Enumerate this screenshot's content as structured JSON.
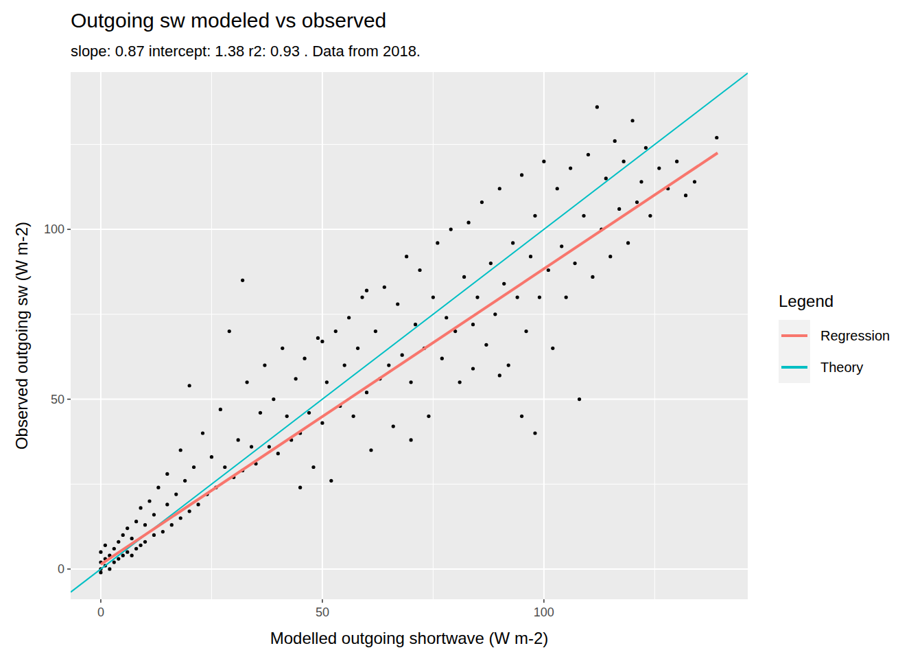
{
  "chart_data": {
    "type": "scatter",
    "title": "Outgoing sw modeled vs observed",
    "subtitle": "slope: 0.87 intercept: 1.38 r2: 0.93 . Data from 2018.",
    "x_label": "Modelled outgoing shortwave (W m-2)",
    "y_label": "Observed outgoing sw (W m-2)",
    "legend_title": "Legend",
    "legend": "right",
    "grid": true,
    "color": "#000000",
    "marker": "circle",
    "xlim": [
      -6.8,
      146
    ],
    "ylim": [
      -8.9,
      146.3
    ],
    "xticks": [
      0,
      50,
      100
    ],
    "yticks": [
      0,
      50,
      100
    ],
    "x": [
      0,
      0,
      0,
      0,
      1,
      1,
      1,
      2,
      2,
      3,
      3,
      4,
      4,
      5,
      5,
      6,
      6,
      7,
      7,
      8,
      8,
      9,
      9,
      10,
      10,
      11,
      12,
      12,
      13,
      14,
      15,
      15,
      16,
      17,
      18,
      18,
      19,
      20,
      20,
      21,
      22,
      23,
      24,
      25,
      26,
      27,
      28,
      29,
      30,
      31,
      32,
      32,
      33,
      34,
      35,
      36,
      37,
      38,
      39,
      40,
      41,
      42,
      43,
      44,
      45,
      46,
      47,
      48,
      49,
      50,
      51,
      52,
      53,
      54,
      55,
      56,
      57,
      58,
      59,
      60,
      61,
      62,
      63,
      64,
      65,
      66,
      67,
      68,
      69,
      70,
      71,
      72,
      73,
      74,
      75,
      76,
      77,
      78,
      79,
      80,
      81,
      82,
      83,
      84,
      85,
      86,
      87,
      88,
      89,
      90,
      91,
      92,
      93,
      94,
      95,
      96,
      97,
      98,
      99,
      100,
      101,
      102,
      103,
      104,
      105,
      106,
      107,
      108,
      109,
      110,
      111,
      112,
      113,
      114,
      115,
      116,
      117,
      118,
      119,
      120,
      121,
      122,
      123,
      124,
      126,
      128,
      130,
      132,
      134,
      139,
      98,
      95,
      90,
      84,
      70,
      45,
      60,
      50
    ],
    "values": [
      0,
      2,
      5,
      -1,
      3,
      7,
      1,
      4,
      0,
      6,
      2,
      8,
      3,
      10,
      4,
      12,
      5,
      9,
      4,
      14,
      6,
      18,
      7,
      13,
      8,
      20,
      10,
      16,
      24,
      11,
      19,
      28,
      13,
      22,
      15,
      35,
      26,
      17,
      54,
      30,
      19,
      40,
      22,
      33,
      24,
      47,
      30,
      70,
      27,
      38,
      85,
      29,
      55,
      36,
      31,
      46,
      60,
      36,
      50,
      34,
      65,
      45,
      38,
      56,
      40,
      62,
      46,
      30,
      68,
      43,
      55,
      26,
      70,
      48,
      60,
      74,
      45,
      65,
      80,
      52,
      35,
      70,
      56,
      83,
      60,
      42,
      78,
      63,
      92,
      55,
      72,
      88,
      65,
      45,
      80,
      96,
      62,
      74,
      100,
      70,
      55,
      86,
      102,
      72,
      80,
      108,
      66,
      90,
      75,
      112,
      84,
      60,
      96,
      80,
      116,
      70,
      92,
      104,
      80,
      120,
      88,
      65,
      112,
      95,
      80,
      118,
      90,
      50,
      104,
      122,
      86,
      136,
      100,
      115,
      92,
      126,
      106,
      120,
      96,
      132,
      108,
      114,
      124,
      104,
      118,
      112,
      120,
      110,
      114,
      127,
      40,
      45,
      57,
      59,
      38,
      24,
      82,
      67
    ],
    "series": [
      {
        "name": "Regression",
        "type": "line",
        "color": "#F8766D",
        "x": [
          0,
          139.2
        ],
        "values": [
          1.38,
          122.5
        ]
      },
      {
        "name": "Theory",
        "type": "line",
        "color": "#00BFC4",
        "x": [
          -6.8,
          146
        ],
        "values": [
          -6.8,
          146
        ]
      }
    ]
  }
}
